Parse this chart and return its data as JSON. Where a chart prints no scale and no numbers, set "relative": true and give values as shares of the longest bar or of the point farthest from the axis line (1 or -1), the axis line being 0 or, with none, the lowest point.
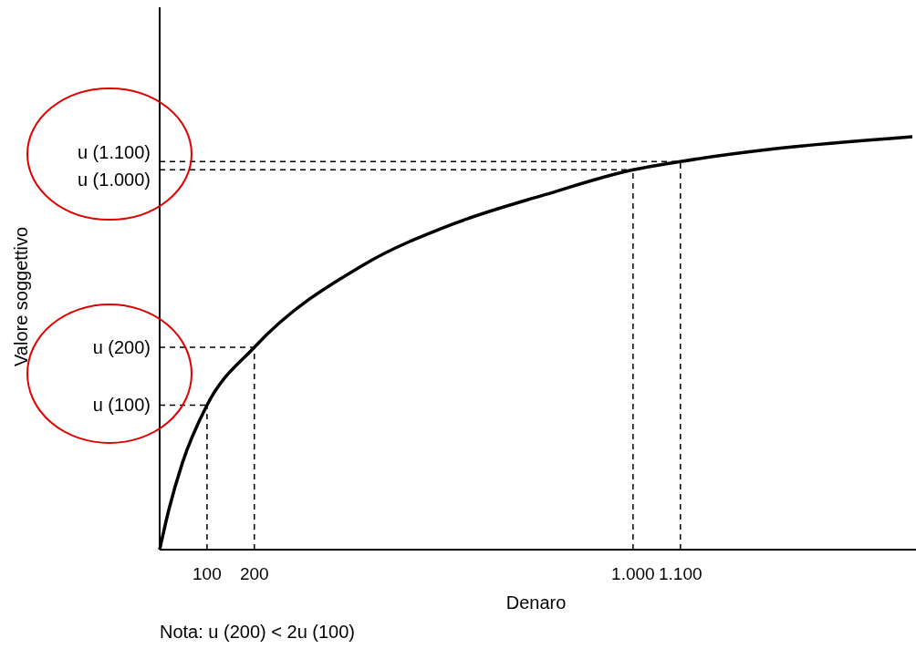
{
  "chart_data": {
    "type": "line",
    "relative": true,
    "xlabel": "Denaro",
    "x": [
      0,
      19,
      48,
      100,
      200,
      431,
      623,
      815,
      1000,
      1100,
      1294,
      1590
    ],
    "series": [
      {
        "color": "#000000",
        "values": [
          0,
          0.095,
          0.21,
          0.35,
          0.49,
          0.69,
          0.79,
          0.86,
          0.92,
          0.94,
          0.97,
          1.0
        ]
      }
    ],
    "xlim": [
      0,
      1590
    ],
    "xticks": [
      100,
      200,
      {
        "value": 1000,
        "label": "1.000"
      },
      {
        "value": 1100,
        "label": "1.100"
      }
    ],
    "ref_lines": [
      {
        "axis": "x",
        "value": 100,
        "label": null,
        "line_style": "dashed"
      },
      {
        "axis": "x",
        "value": 200,
        "label": null,
        "line_style": "dashed"
      },
      {
        "axis": "x",
        "value": 1000,
        "label": null,
        "line_style": "dashed"
      },
      {
        "axis": "x",
        "value": 1100,
        "label": null,
        "line_style": "dashed"
      },
      {
        "axis": "y",
        "value": 0.35,
        "label": "u (100)",
        "line_style": "dashed"
      },
      {
        "axis": "y",
        "value": 0.49,
        "label": "u (200)",
        "line_style": "dashed"
      },
      {
        "axis": "y",
        "value": 0.92,
        "label": "u (1.000)",
        "line_style": "dashed"
      },
      {
        "axis": "y",
        "value": 0.94,
        "label": "u (1.100)",
        "line_style": "dashed"
      }
    ],
    "annotations": [
      "Valore soggettivo",
      "Nota: u (200) < 2u (100)"
    ],
    "grid": false,
    "marker": "none",
    "line_style": "solid"
  }
}
